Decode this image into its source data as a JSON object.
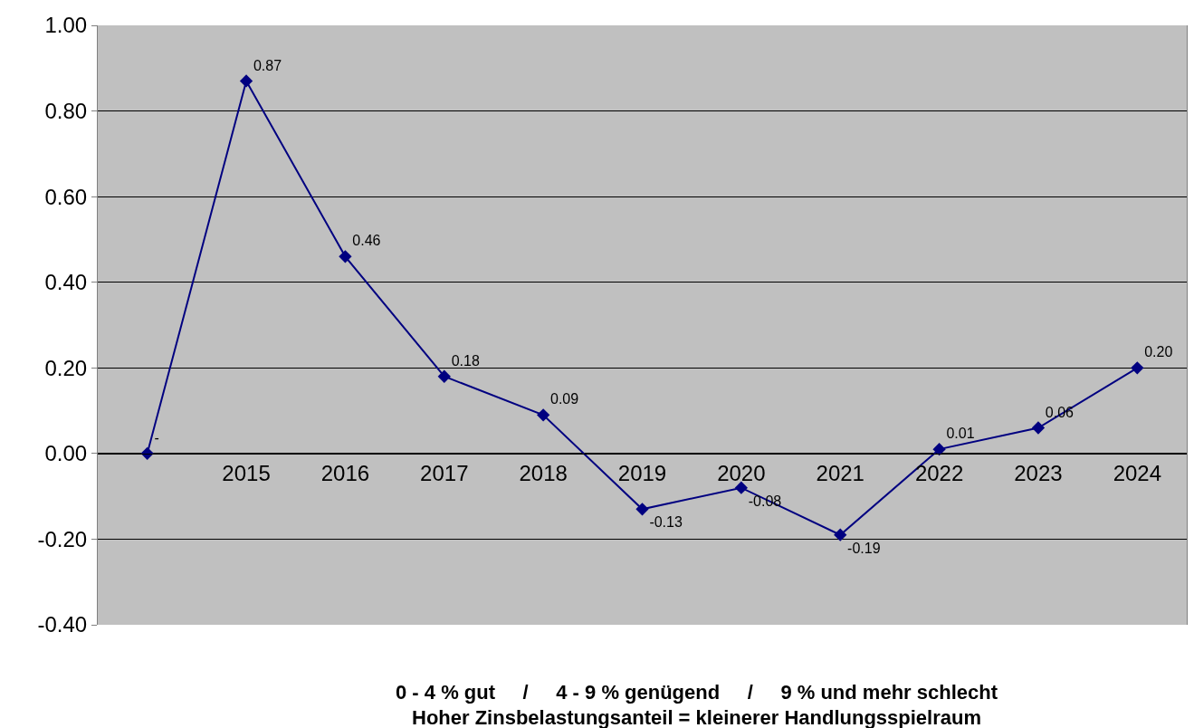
{
  "chart_data": {
    "type": "line",
    "categories": [
      null,
      "2015",
      "2016",
      "2017",
      "2018",
      "2019",
      "2020",
      "2021",
      "2022",
      "2023",
      "2024"
    ],
    "series": [
      {
        "color": "#000080",
        "values": [
          0,
          0.87,
          0.46,
          0.18,
          0.09,
          -0.13,
          -0.08,
          -0.19,
          0.01,
          0.06,
          0.2
        ],
        "value_labels": [
          "-",
          "0.87",
          "0.46",
          "0.18",
          "0.09",
          "-0.13",
          "-0.08",
          "-0.19",
          "0.01",
          "0.06",
          "0.20"
        ]
      }
    ],
    "ylim": [
      -0.4,
      1.0
    ],
    "yticks": [
      {
        "value": -0.4,
        "label": "-0.40"
      },
      {
        "value": -0.2,
        "label": "-0.20"
      },
      {
        "value": 0,
        "label": "0.00"
      },
      {
        "value": 0.2,
        "label": "0.20"
      },
      {
        "value": 0.4,
        "label": "0.40"
      },
      {
        "value": 0.6,
        "label": "0.60"
      },
      {
        "value": 0.8,
        "label": "0.80"
      },
      {
        "value": 1.0,
        "label": "1.00"
      }
    ],
    "grid": "y",
    "marker": "diamond",
    "line_style": "solid",
    "annotations": [
      "0 - 4 % gut     /     4 - 9 % genügend     /     9 % und mehr schlecht",
      "Hoher Zinsbelastungsanteil = kleinerer Handlungsspielraum"
    ]
  }
}
